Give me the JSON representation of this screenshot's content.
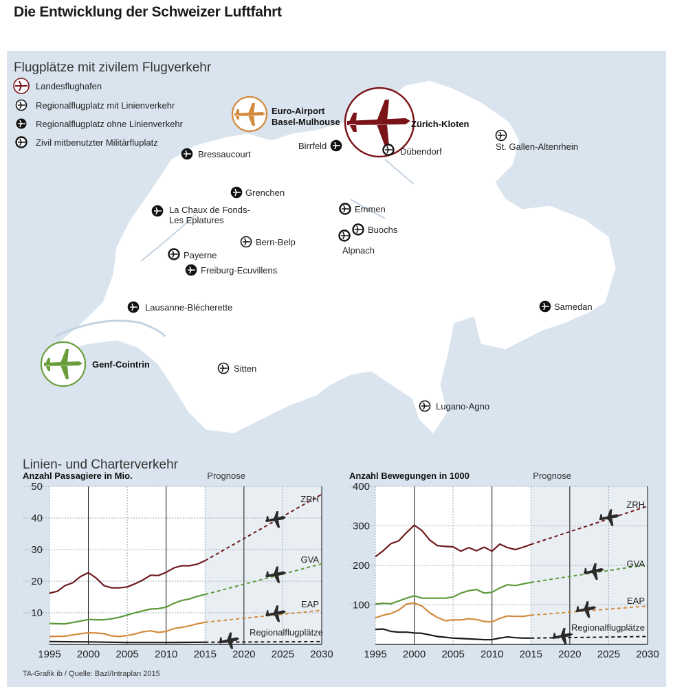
{
  "title": "Die Entwicklung der Schweizer Luftfahrt",
  "map": {
    "heading": "Flugplätze mit zivilem Flugverkehr",
    "legend": [
      {
        "label": "Landesflughafen",
        "icon": "national-airport-icon"
      },
      {
        "label": "Regionalflugplatz mit Linienverkehr",
        "icon": "regional-scheduled-icon"
      },
      {
        "label": "Regionalflugplatz ohne Linienverkehr",
        "icon": "regional-unscheduled-icon"
      },
      {
        "label": "Zivil mitbenutzter Militärfluplatz",
        "icon": "military-civil-icon"
      }
    ],
    "major_airports": [
      {
        "name1": "Zürich-Kloten",
        "name2": "",
        "color": "#7a1418"
      },
      {
        "name1": "Euro-Airport",
        "name2": "Basel-Mulhouse",
        "color": "#d38a3c"
      },
      {
        "name1": "Genf-Cointrin",
        "name2": "",
        "color": "#6a9e3c"
      }
    ],
    "airports": [
      {
        "name1": "Bressaucourt",
        "name2": "",
        "type": "unscheduled"
      },
      {
        "name1": "Birrfeld",
        "name2": "",
        "type": "unscheduled"
      },
      {
        "name1": "Dübendorf",
        "name2": "",
        "type": "military"
      },
      {
        "name1": "St. Gallen-Altenrhein",
        "name2": "",
        "type": "scheduled"
      },
      {
        "name1": "Grenchen",
        "name2": "",
        "type": "unscheduled"
      },
      {
        "name1": "La Chaux de Fonds-",
        "name2": "Les Eplatures",
        "type": "unscheduled"
      },
      {
        "name1": "Emmen",
        "name2": "",
        "type": "military"
      },
      {
        "name1": "Buochs",
        "name2": "",
        "type": "military"
      },
      {
        "name1": "Alpnach",
        "name2": "",
        "type": "military"
      },
      {
        "name1": "Bern-Belp",
        "name2": "",
        "type": "scheduled"
      },
      {
        "name1": "Payerne",
        "name2": "",
        "type": "military"
      },
      {
        "name1": "Freiburg-Ecuvillens",
        "name2": "",
        "type": "unscheduled"
      },
      {
        "name1": "Lausanne-Blécherette",
        "name2": "",
        "type": "unscheduled"
      },
      {
        "name1": "Samedan",
        "name2": "",
        "type": "unscheduled"
      },
      {
        "name1": "Sitten",
        "name2": "",
        "type": "scheduled"
      },
      {
        "name1": "Lugano-Agno",
        "name2": "",
        "type": "scheduled"
      }
    ]
  },
  "charts_heading": "Linien- und Charterverkehr",
  "source": "TA-Grafik ib / Quelle: Bazl/Intraplan 2015",
  "chart_data": [
    {
      "type": "line",
      "title": "Anzahl Passagiere in Mio.",
      "forecast_label": "Prognose",
      "forecast_from": 2015,
      "xlim": [
        1995,
        2030
      ],
      "ylim": [
        0,
        50
      ],
      "xticks": [
        1995,
        2000,
        2005,
        2010,
        2015,
        2020,
        2025,
        2030
      ],
      "yticks": [
        10,
        20,
        30,
        40,
        50
      ],
      "series": [
        {
          "name": "ZRH",
          "color": "#6e1a1c",
          "x": [
            1995,
            1996,
            1997,
            1998,
            1999,
            2000,
            2001,
            2002,
            2003,
            2004,
            2005,
            2006,
            2007,
            2008,
            2009,
            2010,
            2011,
            2012,
            2013,
            2014,
            2015
          ],
          "y": [
            16.2,
            16.8,
            18.6,
            19.5,
            21.5,
            22.7,
            21.0,
            18.6,
            17.9,
            17.9,
            18.2,
            19.2,
            20.4,
            21.9,
            21.8,
            22.8,
            24.2,
            24.9,
            24.9,
            25.4,
            26.5
          ],
          "forecast_x": [
            2015,
            2030
          ],
          "forecast_y": [
            26.5,
            47.5
          ]
        },
        {
          "name": "GVA",
          "color": "#5a9a3a",
          "x": [
            1995,
            1997,
            1999,
            2000,
            2001,
            2002,
            2003,
            2004,
            2005,
            2006,
            2007,
            2008,
            2009,
            2010,
            2011,
            2012,
            2013,
            2014,
            2015
          ],
          "y": [
            6.6,
            6.5,
            7.4,
            7.9,
            7.8,
            7.8,
            8.1,
            8.6,
            9.3,
            10.0,
            10.6,
            11.2,
            11.3,
            11.8,
            13.0,
            13.9,
            14.4,
            15.2,
            15.8
          ],
          "forecast_x": [
            2015,
            2030
          ],
          "forecast_y": [
            15.8,
            25.5
          ]
        },
        {
          "name": "EAP",
          "color": "#d38a3c",
          "x": [
            1995,
            1997,
            1998,
            1999,
            2000,
            2001,
            2002,
            2003,
            2004,
            2005,
            2006,
            2007,
            2008,
            2009,
            2010,
            2011,
            2012,
            2013,
            2014,
            2015
          ],
          "y": [
            2.5,
            2.6,
            3.0,
            3.4,
            3.7,
            3.6,
            3.4,
            2.7,
            2.5,
            2.8,
            3.3,
            4.0,
            4.3,
            3.8,
            4.1,
            5.0,
            5.4,
            5.9,
            6.5,
            7.0
          ],
          "forecast_x": [
            2015,
            2030
          ],
          "forecast_y": [
            7.0,
            10.8
          ]
        },
        {
          "name": "Regionalflugplätze",
          "color": "#1a1a1a",
          "x": [
            1995,
            2000,
            2005,
            2010,
            2015
          ],
          "y": [
            0.9,
            0.8,
            0.6,
            0.6,
            0.7
          ],
          "forecast_x": [
            2015,
            2030
          ],
          "forecast_y": [
            0.7,
            0.9
          ]
        }
      ]
    },
    {
      "type": "line",
      "title": "Anzahl Bewegungen in 1000",
      "forecast_label": "Prognose",
      "forecast_from": 2015,
      "xlim": [
        1995,
        2030
      ],
      "ylim": [
        0,
        400
      ],
      "xticks": [
        1995,
        2000,
        2005,
        2010,
        2015,
        2020,
        2025,
        2030
      ],
      "yticks": [
        100,
        200,
        300,
        400
      ],
      "series": [
        {
          "name": "ZRH",
          "color": "#6e1a1c",
          "x": [
            1995,
            1996,
            1997,
            1998,
            1999,
            2000,
            2001,
            2002,
            2003,
            2004,
            2005,
            2006,
            2007,
            2008,
            2009,
            2010,
            2011,
            2012,
            2013,
            2014,
            2015
          ],
          "y": [
            222,
            237,
            255,
            262,
            283,
            302,
            288,
            264,
            250,
            248,
            247,
            236,
            245,
            237,
            246,
            236,
            254,
            245,
            240,
            246,
            253
          ],
          "forecast_x": [
            2015,
            2030
          ],
          "forecast_y": [
            253,
            350
          ]
        },
        {
          "name": "GVA",
          "color": "#5a9a3a",
          "x": [
            1995,
            1996,
            1997,
            1998,
            1999,
            2000,
            2001,
            2002,
            2003,
            2004,
            2005,
            2006,
            2007,
            2008,
            2009,
            2010,
            2011,
            2012,
            2013,
            2014,
            2015
          ],
          "y": [
            102,
            104,
            103,
            110,
            117,
            123,
            117,
            117,
            117,
            117,
            120,
            130,
            136,
            139,
            130,
            132,
            143,
            151,
            149,
            153,
            157
          ],
          "forecast_x": [
            2015,
            2030
          ],
          "forecast_y": [
            157,
            202
          ]
        },
        {
          "name": "EAP",
          "color": "#d38a3c",
          "x": [
            1995,
            1996,
            1997,
            1998,
            1999,
            2000,
            2001,
            2002,
            2003,
            2004,
            2005,
            2006,
            2007,
            2008,
            2009,
            2010,
            2011,
            2012,
            2013,
            2014,
            2015
          ],
          "y": [
            67,
            74,
            78,
            87,
            102,
            105,
            97,
            80,
            68,
            60,
            62,
            62,
            65,
            63,
            58,
            57,
            66,
            72,
            71,
            71,
            74
          ],
          "forecast_x": [
            2015,
            2030
          ],
          "forecast_y": [
            74,
            97
          ]
        },
        {
          "name": "Regionalflugplätze",
          "color": "#1a1a1a",
          "x": [
            1995,
            1996,
            1997,
            1998,
            1999,
            2000,
            2001,
            2002,
            2003,
            2004,
            2005,
            2006,
            2007,
            2008,
            2009,
            2010,
            2011,
            2012,
            2013,
            2014,
            2015
          ],
          "y": [
            38,
            39,
            33,
            31,
            31,
            29,
            28,
            24,
            20,
            18,
            16,
            15,
            14,
            13,
            12,
            12,
            16,
            19,
            17,
            16,
            16
          ],
          "forecast_x": [
            2015,
            2030
          ],
          "forecast_y": [
            16,
            20
          ]
        }
      ]
    }
  ]
}
